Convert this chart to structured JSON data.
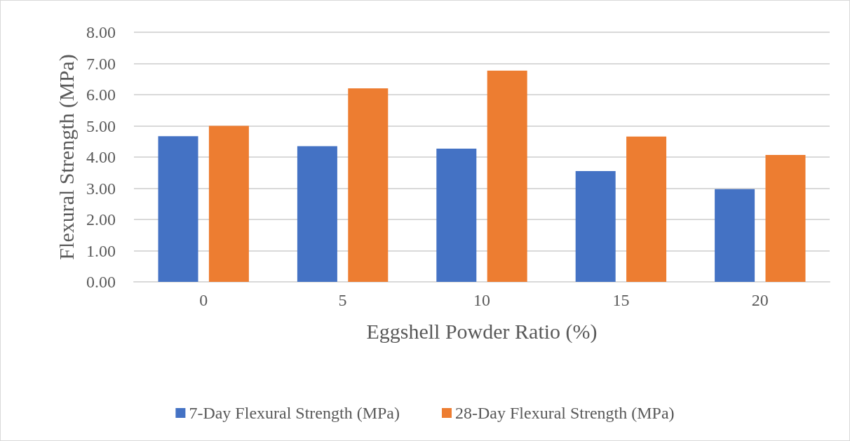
{
  "chart_data": {
    "type": "bar",
    "xlabel": "Eggshell Powder Ratio (%)",
    "ylabel": "Flexural Strength (MPa)",
    "categories": [
      "0",
      "5",
      "10",
      "15",
      "20"
    ],
    "series": [
      {
        "name": "7-Day Flexural Strength (MPa)",
        "color": "#4472c4",
        "values": [
          4.67,
          4.35,
          4.27,
          3.55,
          2.97
        ]
      },
      {
        "name": "28-Day Flexural Strength (MPa)",
        "color": "#ed7d31",
        "values": [
          5.0,
          6.2,
          6.77,
          4.66,
          4.07
        ]
      }
    ],
    "ylim": [
      0,
      8
    ],
    "yticks": [
      {
        "value": 0,
        "label": "0.00"
      },
      {
        "value": 1,
        "label": "1.00"
      },
      {
        "value": 2,
        "label": "2.00"
      },
      {
        "value": 3,
        "label": "3.00"
      },
      {
        "value": 4,
        "label": "4.00"
      },
      {
        "value": 5,
        "label": "5.00"
      },
      {
        "value": 6,
        "label": "6.00"
      },
      {
        "value": 7,
        "label": "7.00"
      },
      {
        "value": 8,
        "label": "8.00"
      }
    ],
    "grid": "y",
    "legend": "bottom"
  }
}
